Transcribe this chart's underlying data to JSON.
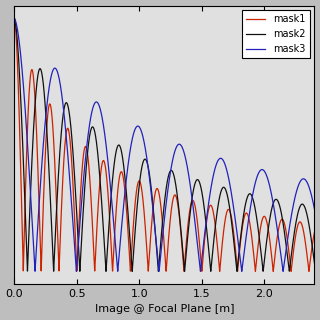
{
  "title": "",
  "xlabel": "Image @ Focal Plane [m]",
  "ylabel": "",
  "xlim": [
    0,
    2.4
  ],
  "ylim": [
    -0.05,
    1.05
  ],
  "x_max": 2.4,
  "legend_labels": [
    "mask1",
    "mask2",
    "mask3"
  ],
  "legend_colors": [
    "#cc2200",
    "#111111",
    "#2222bb"
  ],
  "background_color": "#bebebe",
  "axes_bg_color": "#e0e0e0",
  "red_freq": 22.0,
  "black_freq": 15.0,
  "blue_freq": 9.5,
  "red_decay": 1.8,
  "black_decay": 1.2,
  "blue_decay": 0.75,
  "figsize": [
    3.2,
    3.2
  ],
  "dpi": 100
}
